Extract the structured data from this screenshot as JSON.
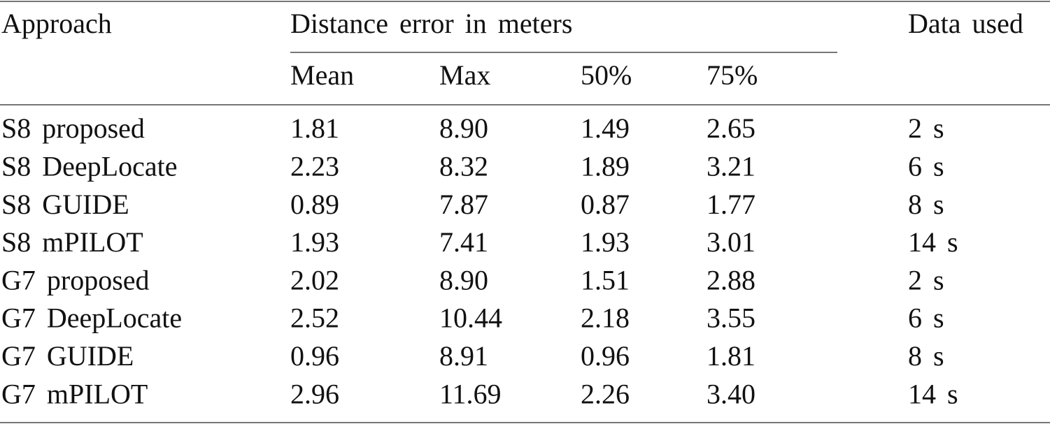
{
  "table": {
    "header": {
      "approach": "Approach",
      "group": "Distance error in meters",
      "data_used": "Data used",
      "subheaders": [
        "Mean",
        "Max",
        "50%",
        "75%"
      ]
    },
    "rows": [
      [
        "S8 proposed",
        "1.81",
        "8.90",
        "1.49",
        "2.65",
        "2 s"
      ],
      [
        "S8 DeepLocate",
        "2.23",
        "8.32",
        "1.89",
        "3.21",
        "6 s"
      ],
      [
        "S8 GUIDE",
        "0.89",
        "7.87",
        "0.87",
        "1.77",
        "8 s"
      ],
      [
        "S8 mPILOT",
        "1.93",
        "7.41",
        "1.93",
        "3.01",
        "14 s"
      ],
      [
        "G7 proposed",
        "2.02",
        "8.90",
        "1.51",
        "2.88",
        "2 s"
      ],
      [
        "G7 DeepLocate",
        "2.52",
        "10.44",
        "2.18",
        "3.55",
        "6 s"
      ],
      [
        "G7 GUIDE",
        "0.96",
        "8.91",
        "0.96",
        "1.81",
        "8 s"
      ],
      [
        "G7 mPILOT",
        "2.96",
        "11.69",
        "2.26",
        "3.40",
        "14 s"
      ]
    ]
  }
}
